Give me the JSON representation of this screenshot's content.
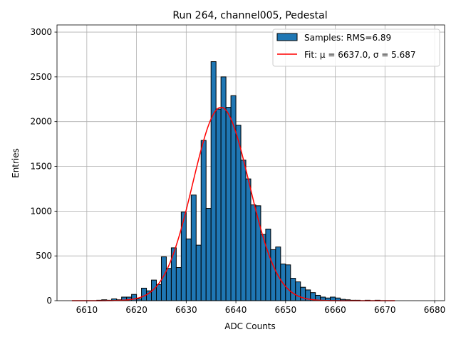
{
  "chart_data": {
    "type": "bar",
    "title": "Run 264, channel005, Pedestal",
    "xlabel": "ADC Counts",
    "ylabel": "Entries",
    "xlim": [
      6604,
      6682
    ],
    "ylim": [
      0,
      3080
    ],
    "xticks": [
      6610,
      6620,
      6630,
      6640,
      6650,
      6660,
      6670,
      6680
    ],
    "yticks": [
      0,
      500,
      1000,
      1500,
      2000,
      2500,
      3000
    ],
    "grid": true,
    "legend_position": "top-right",
    "bin_width": 1,
    "series": [
      {
        "name": "Samples: RMS=6.89",
        "kind": "histogram",
        "color": "#1f77b4",
        "edgecolor": "#000000",
        "bins": [
          {
            "x": 6612,
            "value": 5
          },
          {
            "x": 6613,
            "value": 10
          },
          {
            "x": 6614,
            "value": 5
          },
          {
            "x": 6615,
            "value": 20
          },
          {
            "x": 6616,
            "value": 10
          },
          {
            "x": 6617,
            "value": 40
          },
          {
            "x": 6618,
            "value": 40
          },
          {
            "x": 6619,
            "value": 70
          },
          {
            "x": 6620,
            "value": 20
          },
          {
            "x": 6621,
            "value": 140
          },
          {
            "x": 6622,
            "value": 110
          },
          {
            "x": 6623,
            "value": 230
          },
          {
            "x": 6624,
            "value": 180
          },
          {
            "x": 6625,
            "value": 490
          },
          {
            "x": 6626,
            "value": 360
          },
          {
            "x": 6627,
            "value": 590
          },
          {
            "x": 6628,
            "value": 370
          },
          {
            "x": 6629,
            "value": 990
          },
          {
            "x": 6630,
            "value": 690
          },
          {
            "x": 6631,
            "value": 1180
          },
          {
            "x": 6632,
            "value": 620
          },
          {
            "x": 6633,
            "value": 1790
          },
          {
            "x": 6634,
            "value": 1030
          },
          {
            "x": 6635,
            "value": 2670
          },
          {
            "x": 6636,
            "value": 2140
          },
          {
            "x": 6637,
            "value": 2500
          },
          {
            "x": 6638,
            "value": 2160
          },
          {
            "x": 6639,
            "value": 2290
          },
          {
            "x": 6640,
            "value": 1960
          },
          {
            "x": 6641,
            "value": 1570
          },
          {
            "x": 6642,
            "value": 1360
          },
          {
            "x": 6643,
            "value": 1070
          },
          {
            "x": 6644,
            "value": 1060
          },
          {
            "x": 6645,
            "value": 740
          },
          {
            "x": 6646,
            "value": 800
          },
          {
            "x": 6647,
            "value": 570
          },
          {
            "x": 6648,
            "value": 600
          },
          {
            "x": 6649,
            "value": 410
          },
          {
            "x": 6650,
            "value": 400
          },
          {
            "x": 6651,
            "value": 250
          },
          {
            "x": 6652,
            "value": 210
          },
          {
            "x": 6653,
            "value": 150
          },
          {
            "x": 6654,
            "value": 120
          },
          {
            "x": 6655,
            "value": 90
          },
          {
            "x": 6656,
            "value": 60
          },
          {
            "x": 6657,
            "value": 40
          },
          {
            "x": 6658,
            "value": 30
          },
          {
            "x": 6659,
            "value": 40
          },
          {
            "x": 6660,
            "value": 30
          },
          {
            "x": 6661,
            "value": 15
          },
          {
            "x": 6662,
            "value": 10
          },
          {
            "x": 6663,
            "value": 5
          },
          {
            "x": 6664,
            "value": 5
          },
          {
            "x": 6666,
            "value": 5
          },
          {
            "x": 6668,
            "value": 5
          }
        ]
      },
      {
        "name": "Fit: μ = 6637.0, σ = 5.687",
        "kind": "gaussian_fit",
        "color": "#ff0000",
        "mu": 6637.0,
        "sigma": 5.687,
        "amplitude": 2160,
        "x_range": [
          6607,
          6672
        ]
      }
    ]
  }
}
